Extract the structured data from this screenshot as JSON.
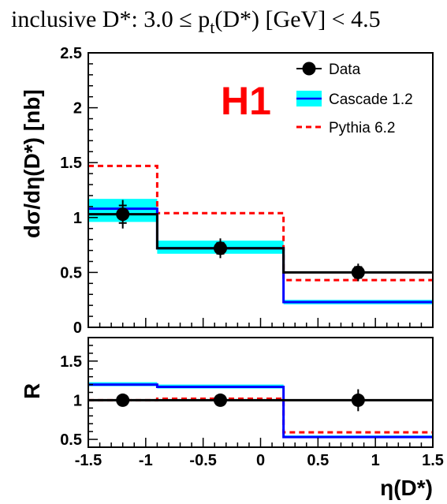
{
  "title": {
    "prefix": "inclusive D*: 3.0 ≤ p",
    "sub": "t",
    "suffix": "(D*) [GeV] < 4.5"
  },
  "logo_text": "H1",
  "colors": {
    "data": "#000000",
    "cascade_line": "#0000ff",
    "cascade_band": "#00ffff",
    "pythia": "#ff0000",
    "logo": "#ff0000"
  },
  "chart_data": [
    {
      "type": "line",
      "name": "main",
      "ylabel": "dσ/dη(D*) [nb]",
      "xlim": [
        -1.5,
        1.5
      ],
      "ylim": [
        0,
        2.5
      ],
      "xticks": [
        "-1.5",
        "-1",
        "-0.5",
        "0",
        "0.5",
        "1",
        "1.5"
      ],
      "xtick_values": [
        -1.5,
        -1,
        -0.5,
        0,
        0.5,
        1,
        1.5
      ],
      "yticks": [
        "0",
        "0.5",
        "1",
        "1.5",
        "2",
        "2.5"
      ],
      "ytick_values": [
        0,
        0.5,
        1,
        1.5,
        2,
        2.5
      ],
      "bin_edges": [
        -1.5,
        -0.9,
        0.2,
        1.5
      ],
      "data": {
        "name": "Data",
        "x": [
          -1.2,
          -0.35,
          0.85
        ],
        "y": [
          1.03,
          0.72,
          0.5
        ],
        "err_stat": [
          0.08,
          0.05,
          0.05
        ],
        "err_tot": [
          0.13,
          0.09,
          0.08
        ],
        "hist": [
          1.03,
          0.72,
          0.5
        ]
      },
      "cascade": {
        "name": "Cascade 1.2",
        "values": [
          1.08,
          0.72,
          0.23
        ],
        "band_low": [
          0.96,
          0.67,
          0.21
        ],
        "band_high": [
          1.17,
          0.79,
          0.25
        ]
      },
      "pythia": {
        "name": "Pythia 6.2",
        "values": [
          1.47,
          1.04,
          0.43
        ]
      },
      "legend": [
        "Data",
        "Cascade 1.2",
        "Pythia 6.2"
      ],
      "legend_position": "top-right"
    },
    {
      "type": "line",
      "name": "ratio",
      "xlabel": "η(D*)",
      "ylabel": "R",
      "xlim": [
        -1.5,
        1.5
      ],
      "ylim": [
        0.4,
        1.8
      ],
      "xticks": [
        "-1.5",
        "-1",
        "-0.5",
        "0",
        "0.5",
        "1",
        "1.5"
      ],
      "xtick_values": [
        -1.5,
        -1,
        -0.5,
        0,
        0.5,
        1,
        1.5
      ],
      "yticks": [
        "0.5",
        "1",
        "1.5"
      ],
      "ytick_values": [
        0.5,
        1,
        1.5
      ],
      "bin_edges": [
        -1.5,
        -0.9,
        0.2,
        1.5
      ],
      "reference": 1.0,
      "data": {
        "x": [
          -1.2,
          -0.35,
          0.85
        ],
        "y": [
          1.0,
          1.0,
          1.0
        ],
        "err": [
          0.07,
          0.06,
          0.14
        ]
      },
      "cascade": {
        "values": [
          1.2,
          1.17,
          0.53
        ],
        "band_low": [
          1.18,
          1.15,
          0.52
        ],
        "band_high": [
          1.23,
          1.2,
          0.55
        ]
      },
      "pythia": {
        "values": [
          1.0,
          1.02,
          0.59
        ]
      }
    }
  ]
}
